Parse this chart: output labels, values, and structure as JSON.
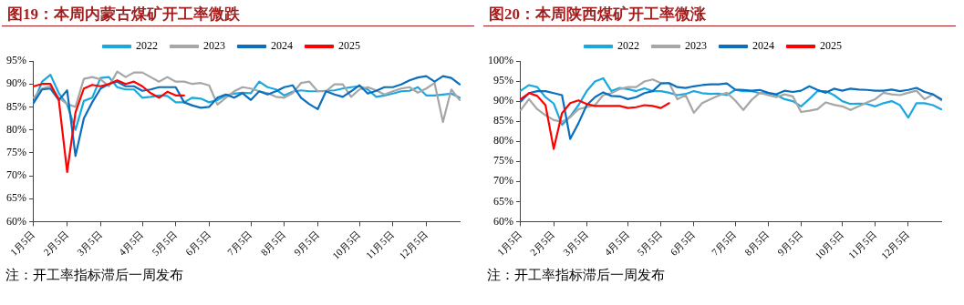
{
  "chart_data": [
    {
      "type": "line",
      "title": "图19：本周内蒙古煤矿开工率微跌",
      "annotations": [
        "注：开工率指标滞后一周发布"
      ],
      "legend": "top",
      "grid": false,
      "marker": "none",
      "line_style": "solid",
      "categories": [
        "1月5日",
        null,
        null,
        null,
        "2月5日",
        null,
        null,
        null,
        "3月5日",
        null,
        null,
        null,
        null,
        "4月5日",
        null,
        null,
        null,
        "5月5日",
        null,
        null,
        null,
        "6月5日",
        null,
        null,
        null,
        null,
        "7月5日",
        null,
        null,
        null,
        "8月5日",
        null,
        null,
        null,
        "9月5日",
        null,
        null,
        null,
        null,
        "10月5日",
        null,
        null,
        null,
        "11月5日",
        null,
        null,
        null,
        "12月5日",
        null,
        null,
        null,
        null
      ],
      "ylim": [
        60,
        95
      ],
      "yticks": [
        {
          "value": 60,
          "label": "60%"
        },
        {
          "value": 65,
          "label": "65%"
        },
        {
          "value": 70,
          "label": "70%"
        },
        {
          "value": 75,
          "label": "75%"
        },
        {
          "value": 80,
          "label": "80%"
        },
        {
          "value": 85,
          "label": "85%"
        },
        {
          "value": 90,
          "label": "90%"
        },
        {
          "value": 95,
          "label": "95%"
        }
      ],
      "series": [
        {
          "name": "2022",
          "color": "#1aa8e0",
          "values": [
            86,
            90.5,
            92,
            88,
            85.5,
            80,
            86.3,
            87,
            91.3,
            91.5,
            89.3,
            88.8,
            88.8,
            87,
            87.2,
            87.5,
            87.4,
            86,
            86,
            87,
            86.8,
            86,
            86.5,
            87.5,
            87.9,
            88.1,
            88,
            90.5,
            89.3,
            88.8,
            87.5,
            88.3,
            88.6,
            88.4,
            88.4,
            88.5,
            88.6,
            89,
            89.3,
            89.5,
            88.8,
            87.2,
            87.5,
            87.9,
            88.4,
            88.5,
            89.3,
            87.5,
            87.5,
            87.7,
            87.9,
            87
          ]
        },
        {
          "name": "2023",
          "color": "#a6a6a6",
          "values": [
            87,
            89,
            89.5,
            87,
            85.6,
            85,
            91.1,
            91.5,
            91,
            89.5,
            92.7,
            91.5,
            92.5,
            92.5,
            91.5,
            90.5,
            91.5,
            90.5,
            90.5,
            90,
            90.2,
            89.7,
            85.5,
            87,
            88.4,
            89.3,
            89,
            88.4,
            88,
            87.2,
            87,
            88,
            90.2,
            90.5,
            88.4,
            88.4,
            89.9,
            89.9,
            87.2,
            88.8,
            89.3,
            88.6,
            87.7,
            88.4,
            89,
            89.3,
            88.1,
            89,
            90.2,
            81.7,
            88.8,
            86.5
          ]
        },
        {
          "name": "2024",
          "color": "#0b6fbd",
          "values": [
            85.9,
            88.8,
            89,
            86.5,
            88.6,
            74.3,
            82.5,
            86,
            89,
            90,
            90.5,
            89.5,
            89.5,
            88.5,
            88.8,
            89.3,
            89.3,
            89.3,
            86,
            85.3,
            84.8,
            85,
            87,
            87.7,
            87,
            88,
            86.5,
            88.4,
            87.7,
            88.4,
            89.3,
            89.7,
            87,
            85.6,
            84.5,
            88.4,
            87.7,
            87.2,
            88.4,
            89.7,
            87.9,
            88.5,
            89.3,
            89.3,
            89.9,
            90.8,
            91.4,
            91.7,
            90.5,
            91.7,
            91.3,
            89.9
          ]
        },
        {
          "name": "2025",
          "color": "#ff0000",
          "values": [
            89.5,
            90,
            90,
            86.5,
            70.8,
            83.8,
            89,
            89.8,
            89.5,
            90,
            90.8,
            90,
            90.5,
            89.5,
            88,
            87,
            88.3,
            87.5,
            87.5,
            null,
            null,
            null,
            null,
            null,
            null,
            null,
            null,
            null,
            null,
            null,
            null,
            null,
            null,
            null,
            null,
            null,
            null,
            null,
            null,
            null,
            null,
            null,
            null,
            null,
            null,
            null,
            null,
            null,
            null,
            null,
            null,
            null
          ]
        }
      ]
    },
    {
      "type": "line",
      "title": "图20：本周陕西煤矿开工率微涨",
      "annotations": [
        "注：开工率指标滞后一周发布"
      ],
      "legend": "top",
      "grid": false,
      "marker": "none",
      "line_style": "solid",
      "categories": [
        "1月5日",
        null,
        null,
        null,
        "2月5日",
        null,
        null,
        null,
        "3月5日",
        null,
        null,
        null,
        null,
        "4月5日",
        null,
        null,
        null,
        "5月5日",
        null,
        null,
        null,
        "6月5日",
        null,
        null,
        null,
        null,
        "7月5日",
        null,
        null,
        null,
        "8月5日",
        null,
        null,
        null,
        "9月5日",
        null,
        null,
        null,
        null,
        "10月5日",
        null,
        null,
        null,
        "11月5日",
        null,
        null,
        null,
        "12月5日",
        null,
        null,
        null,
        null
      ],
      "ylim": [
        60,
        100
      ],
      "yticks": [
        {
          "value": 60,
          "label": "60%"
        },
        {
          "value": 65,
          "label": "65%"
        },
        {
          "value": 70,
          "label": "70%"
        },
        {
          "value": 75,
          "label": "75%"
        },
        {
          "value": 80,
          "label": "80%"
        },
        {
          "value": 85,
          "label": "85%"
        },
        {
          "value": 90,
          "label": "90%"
        },
        {
          "value": 95,
          "label": "95%"
        },
        {
          "value": 100,
          "label": "100%"
        }
      ],
      "series": [
        {
          "name": "2022",
          "color": "#1aa8e0",
          "values": [
            92.6,
            94,
            93.5,
            91,
            89.4,
            84.1,
            86.2,
            89,
            92.5,
            94.9,
            95.7,
            92.5,
            93.3,
            93,
            92.5,
            93.2,
            92.5,
            92.5,
            92.1,
            91.5,
            91.8,
            92.5,
            92,
            91.8,
            91.9,
            91.5,
            92.8,
            92.5,
            92.5,
            92,
            92,
            91.5,
            90.5,
            90,
            88.7,
            90.5,
            92.5,
            92.5,
            91.5,
            90,
            89.3,
            89.4,
            89.3,
            88.7,
            89.5,
            90,
            89,
            85.9,
            89.5,
            89.5,
            89,
            88
          ]
        },
        {
          "name": "2023",
          "color": "#a6a6a6",
          "values": [
            87.8,
            90.5,
            88,
            86.5,
            85.3,
            84.9,
            86,
            88,
            88.5,
            89,
            91.5,
            92,
            93,
            93.5,
            93.5,
            94.9,
            95.4,
            94.5,
            94.5,
            90.5,
            91.5,
            87.1,
            89.5,
            90.5,
            91.4,
            92.1,
            90.2,
            87.8,
            90.3,
            92.1,
            91.5,
            91,
            91.7,
            91.2,
            87.3,
            87.6,
            88,
            89.7,
            89.1,
            88.7,
            87.8,
            88.7,
            89.7,
            90.5,
            92.1,
            91.7,
            91.5,
            92.1,
            92.6,
            90.5,
            91.7,
            90.2
          ]
        },
        {
          "name": "2024",
          "color": "#0b6fbd",
          "values": [
            89.9,
            92,
            92.5,
            92.5,
            92,
            91.5,
            80.6,
            84.5,
            89,
            91,
            92.2,
            91.3,
            91.2,
            90.5,
            91,
            92,
            92.5,
            94.4,
            94.5,
            93.5,
            93.3,
            93.7,
            94,
            94.2,
            94.2,
            94.4,
            92.9,
            92.8,
            92.6,
            92.8,
            92.1,
            91.7,
            92.6,
            92.3,
            92.6,
            93.7,
            92.8,
            92.1,
            93.1,
            92.6,
            93.1,
            92.9,
            92.8,
            92.6,
            92.6,
            92.9,
            92.5,
            92.8,
            93.3,
            92.3,
            91.7,
            90.5
          ]
        },
        {
          "name": "2025",
          "color": "#ff0000",
          "values": [
            90.5,
            92,
            91.3,
            89,
            78.1,
            87,
            89.5,
            90.2,
            89.3,
            88.8,
            88.8,
            88.8,
            88.8,
            88.3,
            88.5,
            89,
            88.8,
            88.3,
            89.5,
            null,
            null,
            null,
            null,
            null,
            null,
            null,
            null,
            null,
            null,
            null,
            null,
            null,
            null,
            null,
            null,
            null,
            null,
            null,
            null,
            null,
            null,
            null,
            null,
            null,
            null,
            null,
            null,
            null,
            null,
            null,
            null,
            null
          ]
        }
      ]
    }
  ]
}
